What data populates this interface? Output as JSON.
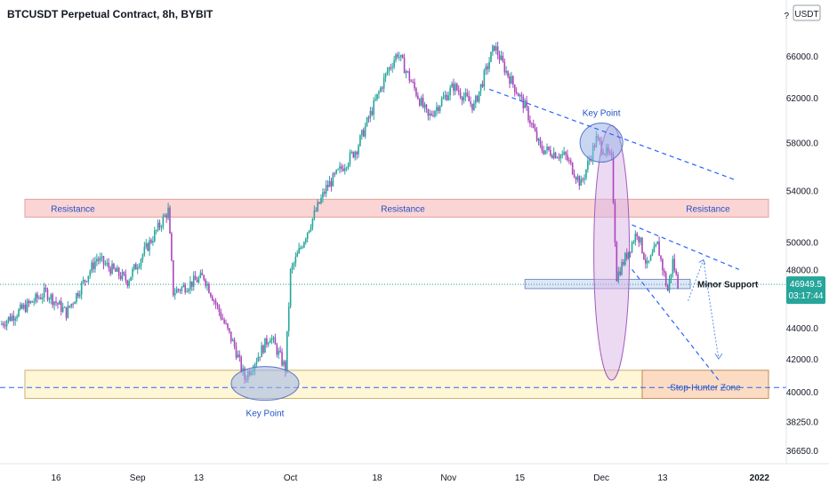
{
  "header": {
    "title": "BTCUSDT Perpetual Contract, 8h, BYBIT",
    "currency_button": "USDT",
    "scale_letter": "?"
  },
  "price_badge": {
    "price": "46949.5",
    "countdown": "03:17:44"
  },
  "annotations": {
    "resistance_left": "Resistance",
    "resistance_mid": "Resistance",
    "resistance_right": "Resistance",
    "key_point_top": "Key Point",
    "key_point_bottom": "Key Point",
    "minor_support": "Minor Support",
    "stop_hunter_zone": "Stop-Hunter Zone"
  },
  "colors": {
    "up": "#26a69a",
    "down": "#ab47bc",
    "resistance_fill": "#fbd4d4",
    "support_fill": "#dde6f7",
    "range_fill": "#fff6d6",
    "stop_fill": "#fbdcc3",
    "trendline": "#2962ff",
    "ellipse_blue": "#9db4e8",
    "ellipse_purple": "#d9b3e6"
  },
  "chart_data": {
    "type": "candlestick",
    "symbol": "BTCUSDT",
    "interval": "8h",
    "exchange": "BYBIT",
    "y_scale": "log",
    "ylim": [
      36650,
      67000
    ],
    "y_ticks": [
      66000,
      62000,
      58000,
      54000,
      50000,
      48000,
      46000,
      44000,
      42000,
      40000,
      38250,
      36650
    ],
    "y_tick_labels": [
      "66000.0",
      "62000.0",
      "58000.0",
      "54000.0",
      "50000.0",
      "48000.0",
      "46000.0",
      "44000.0",
      "42000.0",
      "40000.0",
      "38250.0",
      "36650.0"
    ],
    "x_tick_labels": [
      "16",
      "Sep",
      "13",
      "Oct",
      "18",
      "Nov",
      "15",
      "Dec",
      "13",
      "2022"
    ],
    "x_ticks": [
      "2021-08-16",
      "2021-09-01",
      "2021-09-13",
      "2021-10-01",
      "2021-10-18",
      "2021-11-01",
      "2021-11-15",
      "2021-12-01",
      "2021-12-13",
      "2022-01-01"
    ],
    "last_price": 46949.5,
    "price_path": [
      {
        "date": "2021-08-05",
        "price": 44200
      },
      {
        "date": "2021-08-14",
        "price": 46400
      },
      {
        "date": "2021-08-18",
        "price": 45000
      },
      {
        "date": "2021-08-24",
        "price": 48800
      },
      {
        "date": "2021-08-30",
        "price": 47200
      },
      {
        "date": "2021-09-07",
        "price": 52400
      },
      {
        "date": "2021-09-08",
        "price": 46400
      },
      {
        "date": "2021-09-14",
        "price": 47500
      },
      {
        "date": "2021-09-20",
        "price": 42800
      },
      {
        "date": "2021-09-22",
        "price": 40800
      },
      {
        "date": "2021-09-27",
        "price": 43500
      },
      {
        "date": "2021-09-30",
        "price": 41400
      },
      {
        "date": "2021-10-01",
        "price": 47800
      },
      {
        "date": "2021-10-05",
        "price": 51500
      },
      {
        "date": "2021-10-08",
        "price": 54200
      },
      {
        "date": "2021-10-14",
        "price": 57500
      },
      {
        "date": "2021-10-20",
        "price": 64500
      },
      {
        "date": "2021-10-22",
        "price": 66300
      },
      {
        "date": "2021-10-28",
        "price": 60200
      },
      {
        "date": "2021-11-02",
        "price": 63100
      },
      {
        "date": "2021-11-06",
        "price": 61200
      },
      {
        "date": "2021-11-10",
        "price": 67000
      },
      {
        "date": "2021-11-12",
        "price": 64800
      },
      {
        "date": "2021-11-16",
        "price": 61200
      },
      {
        "date": "2021-11-19",
        "price": 57500
      },
      {
        "date": "2021-11-24",
        "price": 56800
      },
      {
        "date": "2021-11-27",
        "price": 54500
      },
      {
        "date": "2021-11-30",
        "price": 58300
      },
      {
        "date": "2021-12-03",
        "price": 56500
      },
      {
        "date": "2021-12-04",
        "price": 47500
      },
      {
        "date": "2021-12-06",
        "price": 49100
      },
      {
        "date": "2021-12-08",
        "price": 50800
      },
      {
        "date": "2021-12-10",
        "price": 48200
      },
      {
        "date": "2021-12-12",
        "price": 49800
      },
      {
        "date": "2021-12-14",
        "price": 46500
      },
      {
        "date": "2021-12-15",
        "price": 48600
      },
      {
        "date": "2021-12-16",
        "price": 46949.5
      }
    ],
    "levels": {
      "resistance": [
        51900,
        53300
      ],
      "minor_support": [
        46650,
        47300
      ],
      "stop_hunter_zone": [
        39600,
        41300
      ],
      "current_price": 46949.5,
      "dashed_support": 40250
    },
    "trendlines": [
      {
        "from": {
          "date": "2021-11-09",
          "price": 62800
        },
        "to": {
          "date": "2021-12-27",
          "price": 54900
        }
      },
      {
        "from": {
          "date": "2021-12-07",
          "price": 51300
        },
        "to": {
          "date": "2021-12-28",
          "price": 48000
        }
      },
      {
        "from": {
          "date": "2021-12-07",
          "price": 48000
        },
        "to": {
          "date": "2021-12-24",
          "price": 40700
        }
      }
    ],
    "projections": [
      {
        "from": {
          "date": "2021-12-18",
          "price": 45800
        },
        "to": {
          "date": "2021-12-21",
          "price": 48700
        }
      },
      {
        "from": {
          "date": "2021-12-21",
          "price": 48700
        },
        "to": {
          "date": "2021-12-24",
          "price": 42000
        }
      }
    ],
    "legend": "none",
    "grid": false
  }
}
